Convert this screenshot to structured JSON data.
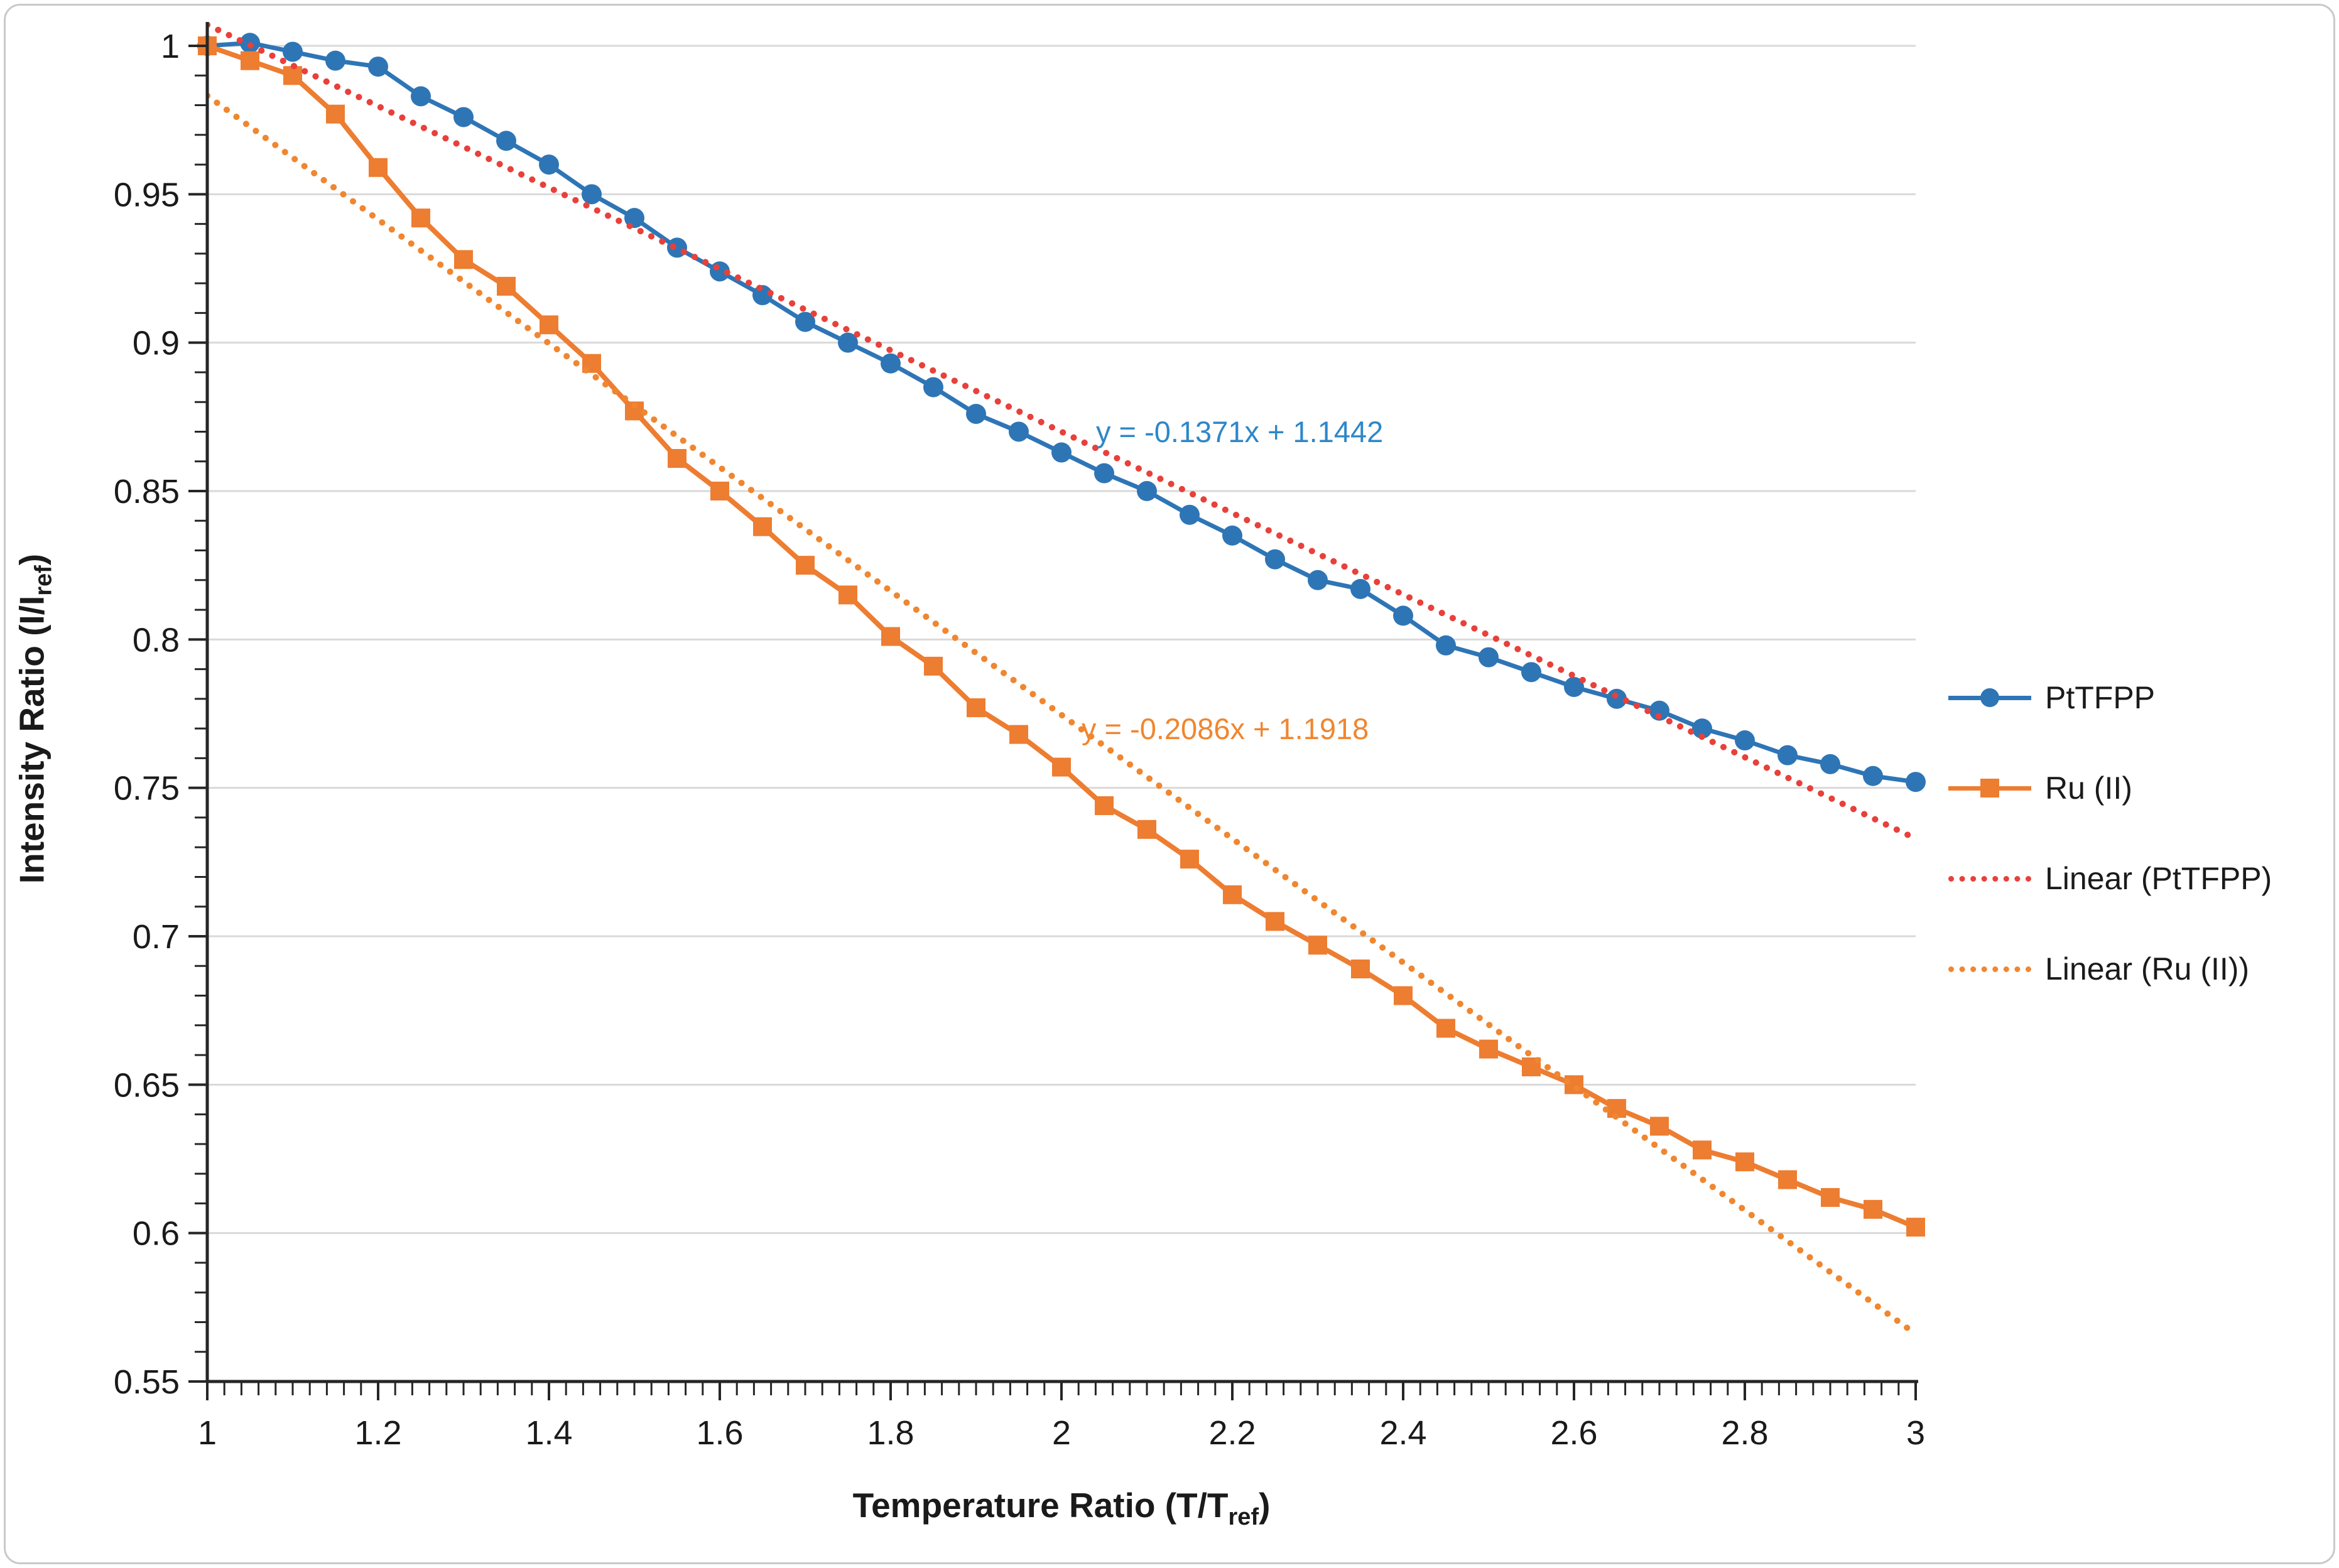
{
  "figure": {
    "background": "#ffffff",
    "border_color": "#c9c9c9"
  },
  "chart_data": {
    "type": "line",
    "title": "",
    "xlabel": {
      "pre": "Temperature Ratio (T/T",
      "sub": "ref",
      "post": ")"
    },
    "ylabel": {
      "pre": "Intensity Ratio (I/I",
      "sub": "ref",
      "post": ")"
    },
    "xlim": [
      1,
      3
    ],
    "ylim": [
      0.55,
      1.0
    ],
    "grid": "horizontal",
    "gridline_color": "#d9d9d9",
    "axis_color": "#262626",
    "tick_label_color": "#1a1a1a",
    "x_minor_step": 0.02,
    "y_minor_step": 0.01,
    "x_ticks": {
      "values": [
        1,
        1.2,
        1.4,
        1.6,
        1.8,
        2,
        2.2,
        2.4,
        2.6,
        2.8,
        3
      ],
      "labels": [
        "1",
        "1.2",
        "1.4",
        "1.6",
        "1.8",
        "2",
        "2.2",
        "2.4",
        "2.6",
        "2.8",
        "3"
      ]
    },
    "y_ticks": {
      "values": [
        1,
        0.95,
        0.9,
        0.85,
        0.8,
        0.75,
        0.7,
        0.65,
        0.6,
        0.55
      ],
      "labels": [
        "1",
        "0.95",
        "0.9",
        "0.85",
        "0.8",
        "0.75",
        "0.7",
        "0.65",
        "0.6",
        "0.55"
      ]
    },
    "x": [
      1,
      1.05,
      1.1,
      1.15,
      1.2,
      1.25,
      1.3,
      1.35,
      1.4,
      1.45,
      1.5,
      1.55,
      1.6,
      1.65,
      1.7,
      1.75,
      1.8,
      1.85,
      1.9,
      1.95,
      2,
      2.05,
      2.1,
      2.15,
      2.2,
      2.25,
      2.3,
      2.35,
      2.4,
      2.45,
      2.5,
      2.55,
      2.6,
      2.65,
      2.7,
      2.75,
      2.8,
      2.85,
      2.9,
      2.95,
      3
    ],
    "series": [
      {
        "name": "PtTFPP",
        "color": "#2E75B6",
        "marker": "circle",
        "line_width": 7,
        "values": [
          1.0,
          1.001,
          0.998,
          0.995,
          0.993,
          0.983,
          0.976,
          0.968,
          0.96,
          0.95,
          0.942,
          0.932,
          0.924,
          0.916,
          0.907,
          0.9,
          0.893,
          0.885,
          0.876,
          0.87,
          0.863,
          0.856,
          0.85,
          0.842,
          0.835,
          0.827,
          0.82,
          0.817,
          0.808,
          0.798,
          0.794,
          0.789,
          0.784,
          0.78,
          0.776,
          0.77,
          0.766,
          0.761,
          0.758,
          0.754,
          0.752
        ]
      },
      {
        "name": "Ru (II)",
        "color": "#ED7D31",
        "marker": "square",
        "line_width": 8,
        "values": [
          1.0,
          0.995,
          0.99,
          0.977,
          0.959,
          0.942,
          0.928,
          0.919,
          0.906,
          0.893,
          0.877,
          0.861,
          0.85,
          0.838,
          0.825,
          0.815,
          0.801,
          0.791,
          0.777,
          0.768,
          0.757,
          0.744,
          0.736,
          0.726,
          0.714,
          0.705,
          0.697,
          0.689,
          0.68,
          0.669,
          0.662,
          0.656,
          0.65,
          0.642,
          0.636,
          0.628,
          0.624,
          0.618,
          0.612,
          0.608,
          0.602
        ]
      }
    ],
    "trendlines": [
      {
        "name": "Linear (PtTFPP)",
        "slope": -0.1371,
        "intercept": 1.1442,
        "equation": "y = -0.1371x + 1.1442",
        "line_color": "#E8403A",
        "equation_color": "#2E87C8"
      },
      {
        "name": "Linear (Ru (II))",
        "slope": -0.2086,
        "intercept": 1.1918,
        "equation": "y = -0.2086x + 1.1918",
        "line_color": "#F0862F",
        "equation_color": "#F0862F"
      }
    ],
    "legend": {
      "position": "right",
      "entries": [
        {
          "label": "PtTFPP",
          "swatch": "blue-line-circle-marker"
        },
        {
          "label": "Ru (II)",
          "swatch": "orange-line-square-marker"
        },
        {
          "label": "Linear (PtTFPP)",
          "swatch": "red-dotted-line"
        },
        {
          "label": "Linear (Ru (II))",
          "swatch": "orange-dotted-line"
        }
      ]
    }
  }
}
